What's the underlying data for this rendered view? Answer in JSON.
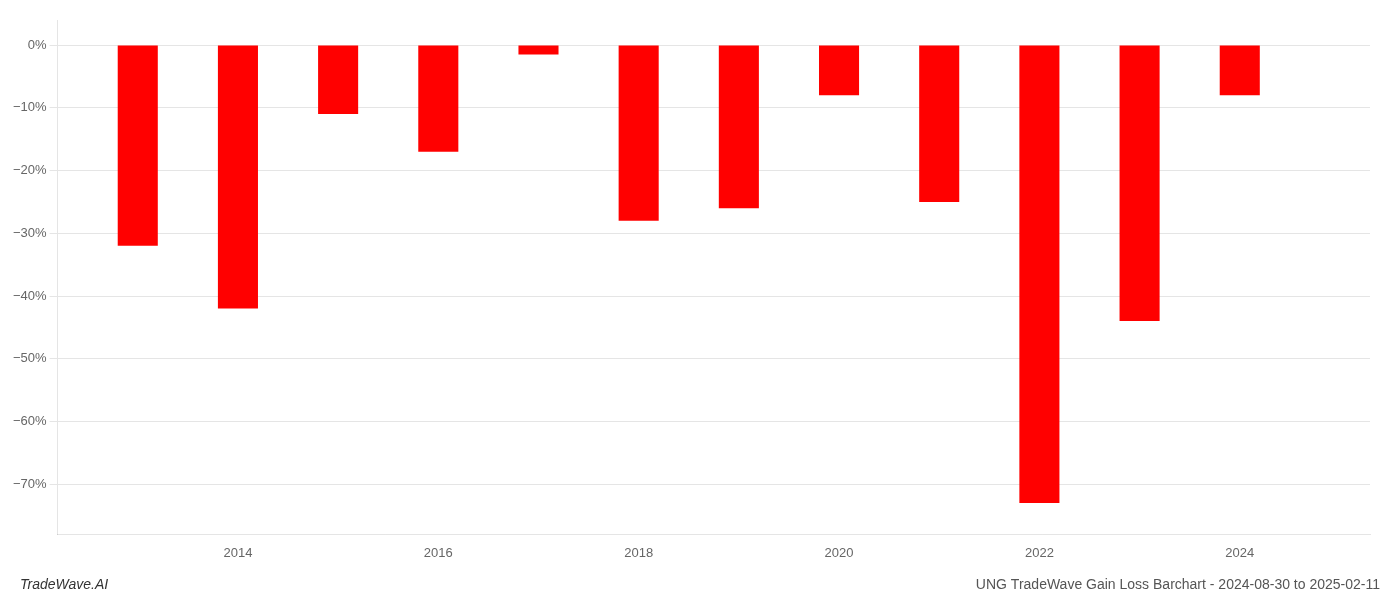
{
  "chart_data": {
    "type": "bar",
    "x": [
      2013,
      2014,
      2015,
      2016,
      2017,
      2018,
      2019,
      2020,
      2021,
      2022,
      2023,
      2024
    ],
    "values": [
      -32,
      -42,
      -11,
      -17,
      -1.5,
      -28,
      -26,
      -8,
      -25,
      -73,
      -44,
      -8
    ],
    "color": "#ff0000",
    "xlim": [
      2012.2,
      2025.3
    ],
    "xticks": [
      2014,
      2016,
      2018,
      2020,
      2022,
      2024
    ],
    "ylim": [
      -78,
      4
    ],
    "yticks": [
      {
        "value": 0,
        "label": "0%"
      },
      {
        "value": -10,
        "label": "−10%"
      },
      {
        "value": -20,
        "label": "−20%"
      },
      {
        "value": -30,
        "label": "−30%"
      },
      {
        "value": -40,
        "label": "−40%"
      },
      {
        "value": -50,
        "label": "−50%"
      },
      {
        "value": -60,
        "label": "−60%"
      },
      {
        "value": -70,
        "label": "−70%"
      }
    ],
    "grid": "y",
    "annotations": [
      "TradeWave.AI",
      "UNG TradeWave Gain Loss Barchart - 2024-08-30 to 2025-02-11"
    ]
  }
}
